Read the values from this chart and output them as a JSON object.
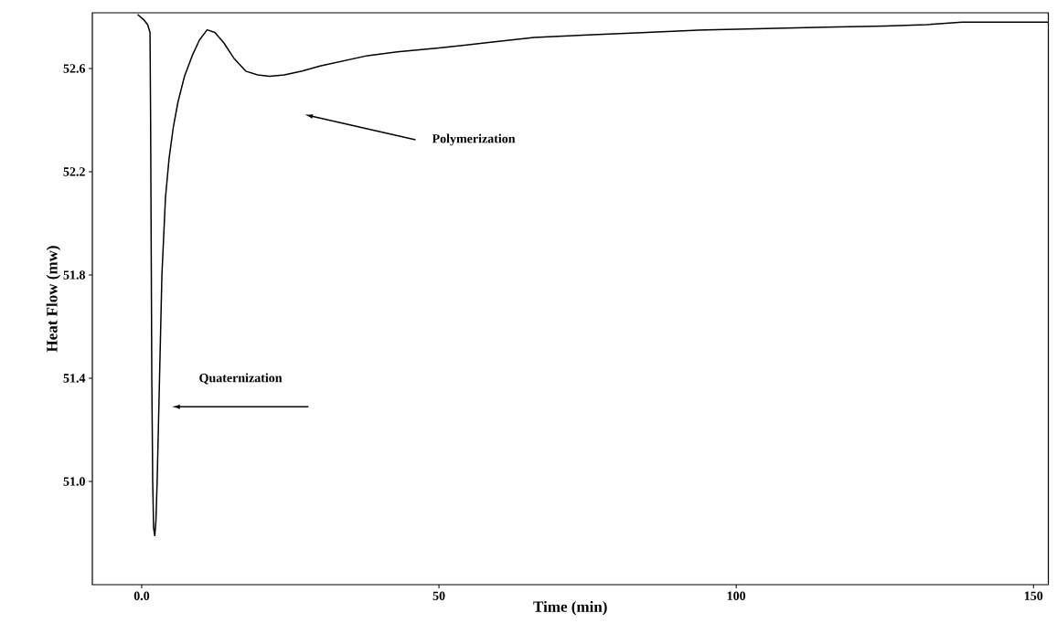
{
  "chart_data": {
    "type": "line",
    "xlabel": "Time (min)",
    "ylabel": "Heat Flow (mw)",
    "xlim": [
      -8.3,
      152.5
    ],
    "ylim": [
      50.6,
      52.816
    ],
    "xticks": [
      {
        "value": 0,
        "label": "0.0"
      },
      50,
      100,
      150
    ],
    "yticks": [
      {
        "value": 51.0,
        "label": "51.0"
      },
      51.4,
      51.8,
      52.2,
      52.6
    ],
    "series": [
      {
        "color": "#000000",
        "x": [
          -0.7,
          0.3,
          1.0,
          1.4,
          1.5,
          1.6,
          1.7,
          1.85,
          2.0,
          2.2,
          2.4,
          2.6,
          3.0,
          3.4,
          4.0,
          4.6,
          5.3,
          6.1,
          7.2,
          8.5,
          9.7,
          11.0,
          12.3,
          13.8,
          15.5,
          17.5,
          19.5,
          21.5,
          24,
          27,
          30,
          34,
          38,
          43,
          50,
          58,
          66,
          75,
          85,
          95,
          105,
          115,
          125,
          132,
          138,
          145,
          152.5
        ],
        "values": [
          52.81,
          52.79,
          52.77,
          52.74,
          52.4,
          51.9,
          51.4,
          51.0,
          50.82,
          50.79,
          50.85,
          51.0,
          51.4,
          51.8,
          52.1,
          52.25,
          52.37,
          52.47,
          52.57,
          52.65,
          52.71,
          52.75,
          52.74,
          52.7,
          52.64,
          52.59,
          52.575,
          52.57,
          52.575,
          52.59,
          52.61,
          52.63,
          52.65,
          52.665,
          52.68,
          52.7,
          52.72,
          52.73,
          52.74,
          52.75,
          52.755,
          52.76,
          52.765,
          52.77,
          52.78,
          52.78,
          52.78
        ]
      }
    ],
    "annotations": [
      "Polymerization",
      "Quaternization"
    ],
    "marker": "none",
    "line_style": "solid"
  }
}
